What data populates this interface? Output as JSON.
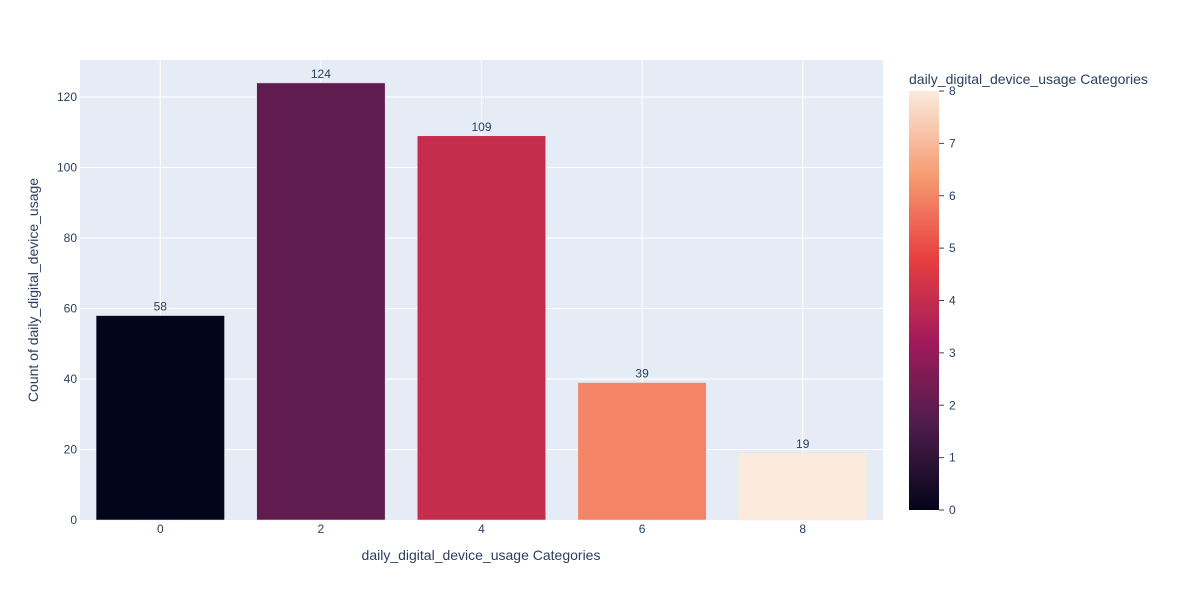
{
  "chart_data": {
    "type": "bar",
    "x": [
      0,
      2,
      4,
      6,
      8
    ],
    "values": [
      58,
      124,
      109,
      39,
      19
    ],
    "data_labels": [
      "58",
      "124",
      "109",
      "39",
      "19"
    ],
    "xlabel": "daily_digital_device_usage Categories",
    "ylabel": "Count of daily_digital_device_usage",
    "x_ticks": [
      "0",
      "2",
      "4",
      "6",
      "8"
    ],
    "y_ticks": [
      "0",
      "20",
      "40",
      "60",
      "80",
      "100",
      "120"
    ],
    "ylim": [
      0,
      130.5
    ],
    "xlim": [
      -1,
      9
    ],
    "grid": true,
    "colorbar": {
      "title": "daily_digital_device_usage Categories",
      "range": [
        0,
        8
      ],
      "ticks": [
        "0",
        "1",
        "2",
        "3",
        "4",
        "5",
        "6",
        "7",
        "8"
      ],
      "colorscale": [
        "#03051a",
        "#4c1d4b",
        "#a11a5b",
        "#e83f3f",
        "#f69c73",
        "#faebdd"
      ]
    },
    "colors": {
      "plot_background": "#e5ecf6",
      "grid": "#ffffff"
    }
  }
}
